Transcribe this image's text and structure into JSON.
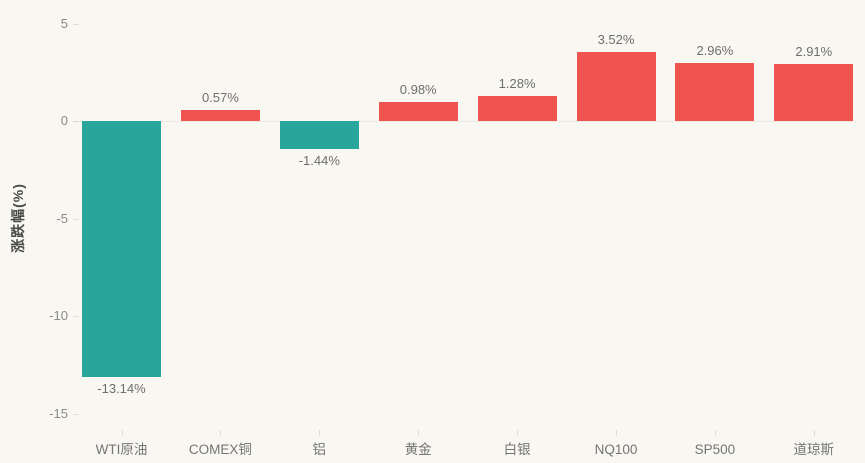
{
  "chart_data": {
    "type": "bar",
    "title": "",
    "categories": [
      "WTI原油",
      "COMEX铜",
      "铝",
      "黄金",
      "白银",
      "NQ100",
      "SP500",
      "道琼斯"
    ],
    "values": [
      -13.14,
      0.57,
      -1.44,
      0.98,
      1.28,
      3.52,
      2.96,
      2.91
    ],
    "value_labels": [
      "-13.14%",
      "0.57%",
      "-1.44%",
      "0.98%",
      "1.28%",
      "3.52%",
      "2.96%",
      "2.91%"
    ],
    "xlabel": "",
    "ylabel": "涨跌幅(%)",
    "ylim": [
      -15,
      5
    ],
    "yticks": [
      5,
      0,
      -5,
      -10,
      -15
    ],
    "ytick_labels": [
      "5",
      "0",
      "-5",
      "-10",
      "-15"
    ],
    "grid": false,
    "legend": false,
    "colors": {
      "positive_bar": "#f05450",
      "negative_bar": "#29a69b",
      "background": "#f9f7f1",
      "axis_text": "#8b8b8b",
      "data_label_text": "#6e6e6e"
    }
  }
}
